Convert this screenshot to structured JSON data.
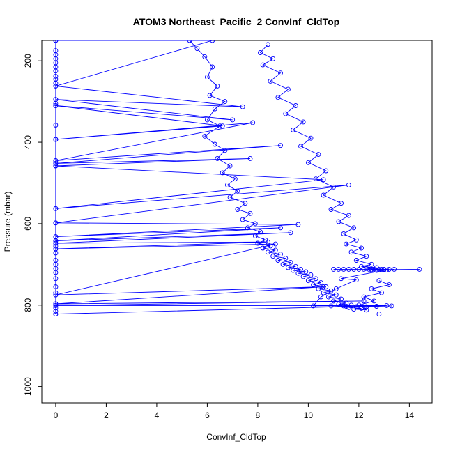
{
  "chart_data": {
    "type": "line",
    "title": "ATOM3 Northeast_Pacific_2 ConvInf_CldTop",
    "xlabel": "ConvInf_CldTop",
    "ylabel": "Pressure (mbar)",
    "xlim": [
      -0.55,
      14.9
    ],
    "ylim": [
      1040,
      150
    ],
    "y_reversed": true,
    "x_ticks": [
      0,
      2,
      4,
      6,
      8,
      10,
      12,
      14
    ],
    "x_tick_labels": [
      "0",
      "2",
      "4",
      "6",
      "8",
      "10",
      "12",
      "14"
    ],
    "y_ticks": [
      200,
      400,
      600,
      800,
      1000
    ],
    "y_tick_labels": [
      "200",
      "400",
      "600",
      "800",
      "1000"
    ],
    "grid": false,
    "legend": "none",
    "series_color": "#0000ff",
    "marker": "open-circle",
    "series": [
      {
        "x": [
          0.0,
          6.2,
          0.0,
          7.4,
          0.0,
          7.0,
          0.0,
          6.6,
          0.0,
          7.8,
          0.0,
          8.9,
          0.0,
          7.7,
          0.0,
          10.6,
          0.0,
          11.6,
          0.0,
          9.6,
          0.0,
          8.9,
          0.0,
          9.3,
          0.0,
          8.4,
          0.0,
          8.7,
          0.0,
          10.6,
          0.0,
          12.2,
          0.0,
          13.1,
          0.0,
          12.8
        ],
        "y": [
          150,
          150,
          262,
          313,
          295,
          345,
          310,
          360,
          393,
          352,
          445,
          408,
          452,
          440,
          458,
          492,
          563,
          505,
          598,
          602,
          632,
          610,
          642,
          622,
          648,
          645,
          662,
          650,
          775,
          755,
          797,
          790,
          801,
          801,
          822,
          822
        ]
      },
      {
        "x": [
          5.3,
          5.6,
          5.9,
          6.2,
          6.0,
          6.4,
          6.1,
          6.7,
          6.3,
          6.0,
          6.5,
          5.9,
          6.3,
          6.7,
          6.4,
          6.9,
          6.6,
          7.1,
          6.8,
          7.2,
          6.9,
          7.5,
          7.2,
          7.7,
          7.4,
          7.9,
          7.6,
          8.1,
          7.9,
          8.3,
          8.0,
          8.5,
          8.2,
          8.7,
          8.4,
          8.9,
          8.6,
          9.1,
          8.8,
          9.3,
          9.0,
          9.5,
          9.2,
          9.7,
          9.4,
          9.9,
          9.6,
          10.1,
          9.8,
          10.3,
          10.0,
          10.5,
          10.2,
          10.7,
          10.4,
          10.9,
          10.6,
          11.1,
          10.8,
          11.3,
          11.0,
          11.5,
          11.2,
          11.7,
          11.4,
          11.9,
          11.6,
          12.1,
          11.8,
          12.3,
          12.0,
          12.6,
          12.2,
          12.9,
          12.5,
          13.2,
          12.8
        ],
        "y": [
          150,
          170,
          190,
          215,
          240,
          262,
          285,
          300,
          318,
          345,
          360,
          385,
          405,
          420,
          440,
          458,
          475,
          490,
          505,
          520,
          535,
          550,
          565,
          575,
          590,
          600,
          610,
          620,
          630,
          640,
          648,
          655,
          660,
          665,
          670,
          675,
          680,
          685,
          690,
          695,
          700,
          705,
          708,
          712,
          715,
          718,
          722,
          726,
          730,
          735,
          740,
          745,
          750,
          755,
          760,
          765,
          770,
          775,
          780,
          785,
          790,
          795,
          798,
          800,
          802,
          804,
          806,
          808,
          810,
          812,
          800,
          790,
          780,
          770,
          760,
          750,
          740
        ]
      },
      {
        "x": [
          8.4,
          8.1,
          8.6,
          8.2,
          8.9,
          8.5,
          9.2,
          8.8,
          9.5,
          9.1,
          9.8,
          9.4,
          10.1,
          9.7,
          10.4,
          10.0,
          10.7,
          10.3,
          11.0,
          10.6,
          11.3,
          10.9,
          11.6,
          11.2,
          11.8,
          11.4,
          11.9,
          11.5,
          12.1,
          11.7,
          12.3,
          11.9,
          12.5,
          12.1,
          12.7,
          12.3,
          12.9,
          12.5,
          13.1,
          12.7,
          13.4,
          12.9,
          13.0,
          14.4
        ],
        "y": [
          160,
          180,
          195,
          210,
          230,
          250,
          270,
          290,
          310,
          330,
          350,
          370,
          390,
          410,
          430,
          450,
          470,
          490,
          510,
          530,
          550,
          565,
          580,
          595,
          610,
          625,
          640,
          650,
          660,
          670,
          680,
          690,
          700,
          705,
          708,
          710,
          712,
          713,
          714,
          715,
          712,
          714,
          713,
          712
        ]
      },
      {
        "x": [
          11.0,
          11.2,
          11.4,
          11.6,
          11.8,
          12.0,
          12.2,
          12.4,
          12.6,
          12.8,
          13.0,
          13.2,
          11.3,
          11.9,
          11.1,
          10.5,
          10.2,
          10.9,
          11.5,
          12.3,
          12.7,
          13.3
        ],
        "y": [
          712,
          712,
          712,
          712,
          712,
          712,
          712,
          712,
          712,
          712,
          712,
          712,
          735,
          738,
          760,
          780,
          802,
          802,
          803,
          804,
          803,
          802
        ]
      },
      {
        "x": [
          0.0,
          0.0,
          0.0,
          0.0,
          0.0,
          0.0,
          0.0,
          0.0,
          0.0,
          0.0,
          0.0,
          0.0,
          0.0,
          0.0,
          0.0,
          0.0,
          0.0,
          0.0,
          0.0,
          0.0,
          0.0,
          0.0,
          0.0,
          0.0,
          0.0,
          0.0,
          0.0,
          0.0,
          0.0,
          0.0,
          0.0,
          0.0,
          0.0,
          0.0,
          0.0,
          0.0,
          0.0,
          0.0,
          0.0,
          0.0
        ],
        "y": [
          150,
          175,
          185,
          195,
          205,
          215,
          225,
          238,
          245,
          255,
          262,
          295,
          305,
          310,
          358,
          393,
          445,
          452,
          458,
          563,
          598,
          632,
          642,
          648,
          655,
          662,
          672,
          690,
          700,
          710,
          720,
          735,
          755,
          770,
          775,
          797,
          801,
          807,
          815,
          822
        ]
      }
    ]
  }
}
